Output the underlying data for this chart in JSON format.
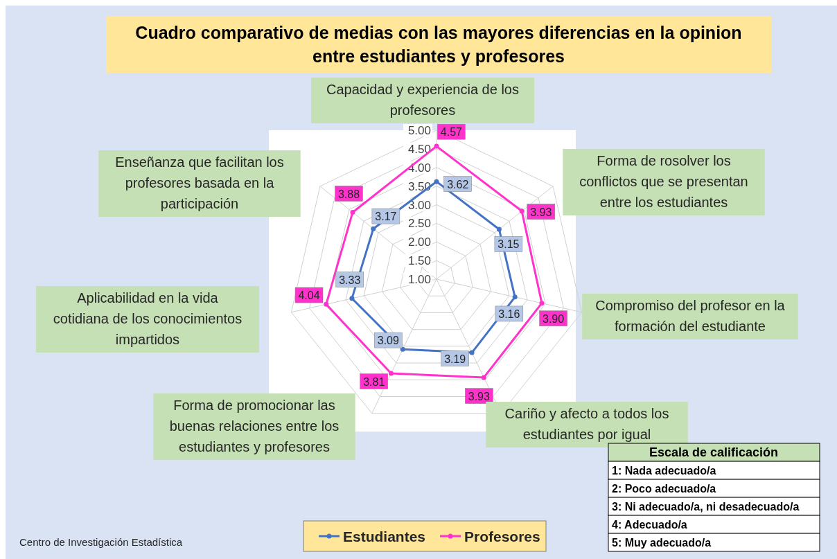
{
  "chart_data": {
    "type": "radar",
    "title": "Cuadro comparativo de medias con las mayores diferencias en la opinion entre estudiantes y profesores",
    "categories": [
      "Capacidad y experiencia de los profesores",
      "Forma de rosolver los conflictos que se presentan entre los estudiantes",
      "Compromiso del profesor en la formación del estudiante",
      "Cariño y afecto a todos los estudiantes por igual",
      "Forma de promocionar las buenas relaciones entre los estudiantes y profesores",
      "Aplicabilidad en la vida cotidiana de los conocimientos impartidos",
      "Enseñanza que facilitan los profesores basada en la participación"
    ],
    "series": [
      {
        "name": "Estudiantes",
        "color": "#4472c4",
        "values": [
          3.62,
          3.15,
          3.16,
          3.19,
          3.09,
          3.33,
          3.17
        ],
        "value_labels": [
          "3.62",
          "3.15",
          "3.16",
          "3.19",
          "3.09",
          "3.33",
          "3.17"
        ]
      },
      {
        "name": "Profesores",
        "color": "#ff33cc",
        "values": [
          4.57,
          3.93,
          3.9,
          3.93,
          3.81,
          4.04,
          3.88
        ],
        "value_labels": [
          "4.57",
          "3.93",
          "3.90",
          "3.93",
          "3.81",
          "4.04",
          "3.88"
        ]
      }
    ],
    "ylim": [
      1,
      5
    ],
    "yticks": [
      {
        "value": 1,
        "label": "1.00"
      },
      {
        "value": 1.5,
        "label": "1.50"
      },
      {
        "value": 2,
        "label": "2.00"
      },
      {
        "value": 2.5,
        "label": "2.50"
      },
      {
        "value": 3,
        "label": "3.00"
      },
      {
        "value": 3.5,
        "label": "3.50"
      },
      {
        "value": 4,
        "label": "4.00"
      },
      {
        "value": 4.5,
        "label": "4.50"
      },
      {
        "value": 5,
        "label": "5.00"
      }
    ],
    "grid": true,
    "marker": "circle",
    "legend": "bottom",
    "annotations": [
      "Escala de calificación",
      "1: Nada adecuado/a",
      "2: Poco adecuado/a",
      "3: Ni adecuado/a, ni desadecuado/a",
      "4: Adecuado/a",
      "5: Muy adecuado/a",
      "Centro de Investigación Estadística"
    ]
  }
}
